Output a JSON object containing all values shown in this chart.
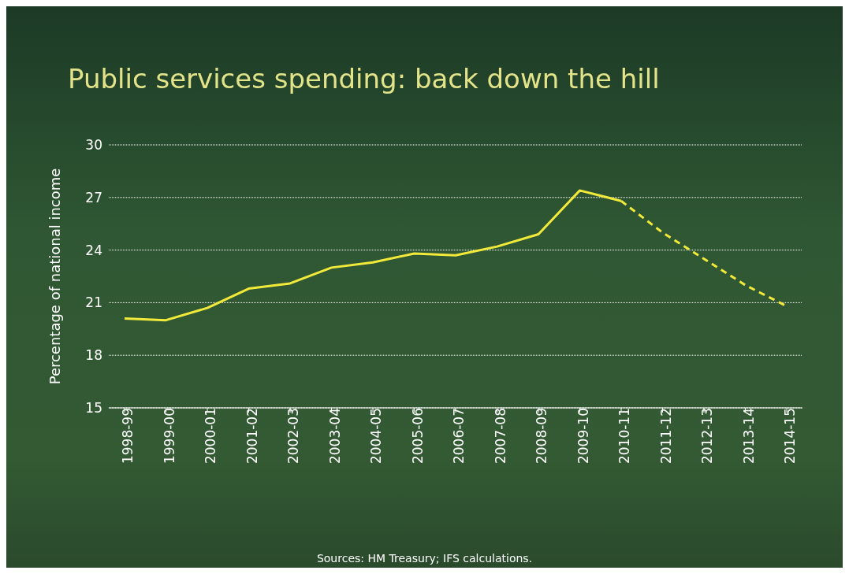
{
  "chart_data": {
    "type": "line",
    "title": "Public services spending: back down the hill",
    "ylabel": "Percentage of national income",
    "categories": [
      "1998-99",
      "1999-00",
      "2000-01",
      "2001-02",
      "2002-03",
      "2003-04",
      "2004-05",
      "2005-06",
      "2006-07",
      "2007-08",
      "2008-09",
      "2009-10",
      "2010-11",
      "2011-12",
      "2012-13",
      "2013-14",
      "2014-15"
    ],
    "series": [
      {
        "color": "#f2ea3a",
        "line_style": "solid",
        "values": [
          20.1,
          20.0,
          20.7,
          21.8,
          22.1,
          23.0,
          23.3,
          23.8,
          23.7,
          24.2,
          24.9,
          27.4,
          26.8,
          null,
          null,
          null,
          null
        ]
      },
      {
        "color": "#f2ea3a",
        "line_style": "dashed",
        "values": [
          null,
          null,
          null,
          null,
          null,
          null,
          null,
          null,
          null,
          null,
          null,
          null,
          26.8,
          25.0,
          23.5,
          22.0,
          20.8
        ]
      }
    ],
    "ylim": [
      15,
      30
    ],
    "yticks": [
      15,
      18,
      21,
      24,
      27,
      30
    ],
    "grid": "y",
    "marker": "none",
    "legend": false,
    "annotations": [
      "Sources: HM Treasury; IFS calculations."
    ]
  }
}
